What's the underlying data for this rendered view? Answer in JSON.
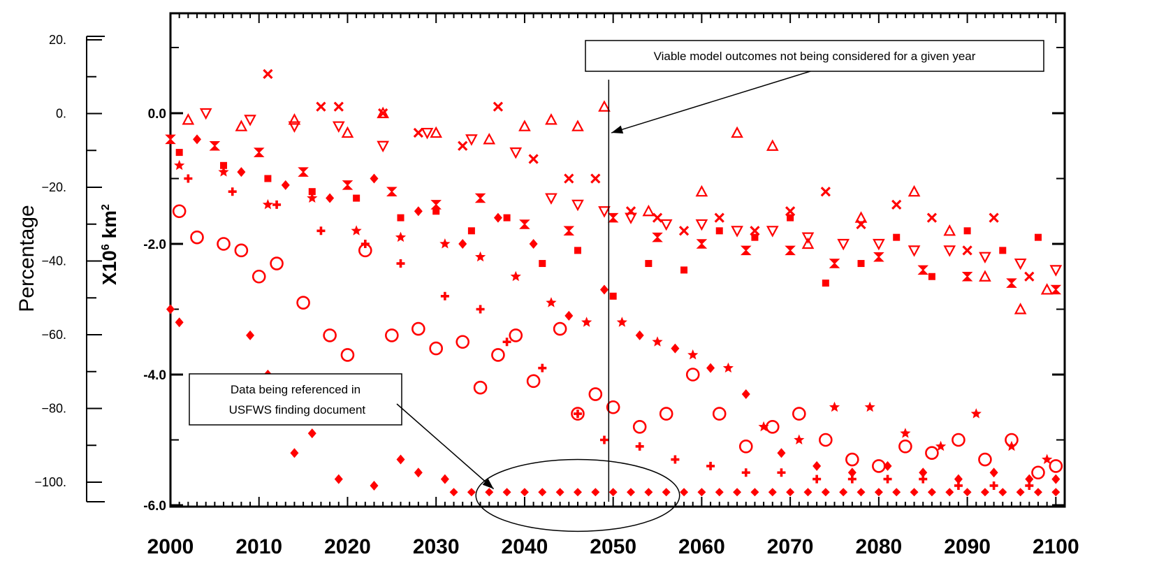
{
  "chart_data": {
    "type": "scatter",
    "x_range": [
      2000,
      2101
    ],
    "y_range_km": [
      -6.0,
      0.0
    ],
    "y_axis_right": {
      "title_prefix": "X10",
      "title_sup1": "6",
      "title_unit": " km",
      "title_sup2": "2",
      "ticks": [
        {
          "value": 0.0,
          "label": "0.0"
        },
        {
          "value": -2.0,
          "label": "-2.0"
        },
        {
          "value": -4.0,
          "label": "-4.0"
        },
        {
          "value": -6.0,
          "label": "-6.0"
        }
      ]
    },
    "y_axis_left": {
      "title": "Percentage",
      "ticks": [
        {
          "value": 20,
          "label": "20."
        },
        {
          "value": 0,
          "label": "0."
        },
        {
          "value": -20,
          "label": "−20."
        },
        {
          "value": -40,
          "label": "−40."
        },
        {
          "value": -60,
          "label": "−60."
        },
        {
          "value": -80,
          "label": "−80."
        },
        {
          "value": -100,
          "label": "−100."
        }
      ]
    },
    "x_ticks": [
      {
        "value": 2000,
        "label": "2000"
      },
      {
        "value": 2010,
        "label": "2010"
      },
      {
        "value": 2020,
        "label": "2020"
      },
      {
        "value": 2030,
        "label": "2030"
      },
      {
        "value": 2040,
        "label": "2040"
      },
      {
        "value": 2050,
        "label": "2050"
      },
      {
        "value": 2060,
        "label": "2060"
      },
      {
        "value": 2070,
        "label": "2070"
      },
      {
        "value": 2080,
        "label": "2080"
      },
      {
        "value": 2090,
        "label": "2090"
      },
      {
        "value": 2100,
        "label": "2100"
      }
    ],
    "marker_color": "#ff0000",
    "series": [
      {
        "marker": "hourglass",
        "x": [
          2000,
          2005,
          2010,
          2015,
          2020,
          2025,
          2030,
          2035,
          2040,
          2045,
          2050,
          2055,
          2060,
          2065,
          2070,
          2075,
          2080,
          2085,
          2090,
          2095,
          2100
        ],
        "y": [
          -0.4,
          -0.5,
          -0.6,
          -0.9,
          -1.1,
          -1.2,
          -1.4,
          -1.3,
          -1.7,
          -1.8,
          -1.6,
          -1.9,
          -2.0,
          -2.1,
          -2.1,
          -2.3,
          -2.2,
          -2.4,
          -2.5,
          -2.6,
          -2.7
        ]
      },
      {
        "marker": "triangle-up",
        "x": [
          2002,
          2008,
          2014,
          2020,
          2024,
          2030,
          2036,
          2040,
          2043,
          2046,
          2049,
          2054,
          2060,
          2064,
          2068,
          2072,
          2078,
          2084,
          2088,
          2092,
          2096,
          2099
        ],
        "y": [
          -0.1,
          -0.2,
          -0.1,
          -0.3,
          0.0,
          -0.3,
          -0.4,
          -0.2,
          -0.1,
          -0.2,
          0.1,
          -1.5,
          -1.2,
          -0.3,
          -0.5,
          -2.0,
          -1.6,
          -1.2,
          -1.8,
          -2.5,
          -3.0,
          -2.7
        ]
      },
      {
        "marker": "triangle-down",
        "x": [
          2004,
          2009,
          2014,
          2019,
          2024,
          2029,
          2034,
          2039,
          2043,
          2046,
          2049,
          2052,
          2056,
          2060,
          2064,
          2068,
          2072,
          2076,
          2080,
          2084,
          2088,
          2092,
          2096,
          2100
        ],
        "y": [
          0.0,
          -0.1,
          -0.2,
          -0.2,
          -0.5,
          -0.3,
          -0.4,
          -0.6,
          -1.3,
          -1.4,
          -1.5,
          -1.6,
          -1.7,
          -1.7,
          -1.8,
          -1.8,
          -1.9,
          -2.0,
          -2.0,
          -2.1,
          -2.1,
          -2.2,
          -2.3,
          -2.4
        ]
      },
      {
        "marker": "x",
        "x": [
          2011,
          2017,
          2019,
          2024,
          2028,
          2033,
          2037,
          2041,
          2045,
          2048,
          2052,
          2055,
          2058,
          2062,
          2066,
          2070,
          2074,
          2078,
          2082,
          2086,
          2090,
          2093,
          2097
        ],
        "y": [
          0.6,
          0.1,
          0.1,
          0.0,
          -0.3,
          -0.5,
          0.1,
          -0.7,
          -1.0,
          -1.0,
          -1.5,
          -1.6,
          -1.8,
          -1.6,
          -1.8,
          -1.5,
          -1.2,
          -1.7,
          -1.4,
          -1.6,
          -2.1,
          -1.6,
          -2.5
        ]
      },
      {
        "marker": "plus",
        "x": [
          2002,
          2007,
          2012,
          2017,
          2022,
          2026,
          2031,
          2035,
          2038,
          2042,
          2046,
          2049,
          2053,
          2057,
          2061,
          2065,
          2069,
          2073,
          2077,
          2081,
          2085,
          2089,
          2093,
          2097
        ],
        "y": [
          -1.0,
          -1.2,
          -1.4,
          -1.8,
          -2.0,
          -2.3,
          -2.8,
          -3.0,
          -3.5,
          -3.9,
          -4.6,
          -5.0,
          -5.1,
          -5.3,
          -5.4,
          -5.5,
          -5.5,
          -5.6,
          -5.6,
          -5.6,
          -5.6,
          -5.7,
          -5.7,
          -5.7
        ]
      },
      {
        "marker": "square",
        "x": [
          2001,
          2006,
          2011,
          2016,
          2021,
          2026,
          2030,
          2034,
          2038,
          2042,
          2046,
          2050,
          2054,
          2058,
          2062,
          2066,
          2070,
          2074,
          2078,
          2082,
          2086,
          2090,
          2094,
          2098
        ],
        "y": [
          -0.6,
          -0.8,
          -1.0,
          -1.2,
          -1.3,
          -1.6,
          -1.5,
          -1.8,
          -1.6,
          -2.3,
          -2.1,
          -2.8,
          -2.3,
          -2.4,
          -1.8,
          -1.9,
          -1.6,
          -2.6,
          -2.3,
          -1.9,
          -2.5,
          -1.8,
          -2.1,
          -1.9
        ]
      },
      {
        "marker": "diamond",
        "x": [
          2003,
          2008,
          2013,
          2018,
          2023,
          2028,
          2033,
          2037,
          2041,
          2045,
          2049,
          2053,
          2057,
          2061,
          2065,
          2069,
          2073,
          2077,
          2081,
          2085,
          2089,
          2093,
          2097,
          2100
        ],
        "y": [
          -0.4,
          -0.9,
          -1.1,
          -1.3,
          -1.0,
          -1.5,
          -2.0,
          -1.6,
          -2.0,
          -3.1,
          -2.7,
          -3.4,
          -3.6,
          -3.9,
          -4.3,
          -5.2,
          -5.4,
          -5.5,
          -5.4,
          -5.5,
          -5.6,
          -5.5,
          -5.6,
          -5.6
        ]
      },
      {
        "marker": "star",
        "x": [
          2001,
          2006,
          2011,
          2016,
          2021,
          2026,
          2031,
          2035,
          2039,
          2043,
          2047,
          2051,
          2055,
          2059,
          2063,
          2067,
          2071,
          2075,
          2079,
          2083,
          2087,
          2091,
          2095,
          2099
        ],
        "y": [
          -0.8,
          -0.9,
          -1.4,
          -1.3,
          -1.8,
          -1.9,
          -2.0,
          -2.2,
          -2.5,
          -2.9,
          -3.2,
          -3.2,
          -3.5,
          -3.7,
          -3.9,
          -4.8,
          -5.0,
          -4.5,
          -4.5,
          -4.9,
          -5.1,
          -4.6,
          -5.1,
          -5.3
        ]
      },
      {
        "marker": "circle",
        "x": [
          2001,
          2003,
          2006,
          2008,
          2010,
          2012,
          2015,
          2018,
          2020,
          2022,
          2025,
          2028,
          2030,
          2033,
          2035,
          2037,
          2039,
          2041,
          2044,
          2046,
          2048,
          2050,
          2053,
          2056,
          2059,
          2062,
          2065,
          2068,
          2071,
          2074,
          2077,
          2080,
          2083,
          2086,
          2089,
          2092,
          2095,
          2098,
          2100
        ],
        "y": [
          -1.5,
          -1.9,
          -2.0,
          -2.1,
          -2.5,
          -2.3,
          -2.9,
          -3.4,
          -3.7,
          -2.1,
          -3.4,
          -3.3,
          -3.6,
          -3.5,
          -4.2,
          -3.7,
          -3.4,
          -4.1,
          -3.3,
          -4.6,
          -4.3,
          -4.5,
          -4.8,
          -4.6,
          -4.0,
          -4.6,
          -5.1,
          -4.8,
          -4.6,
          -5.0,
          -5.3,
          -5.4,
          -5.1,
          -5.2,
          -5.0,
          -5.3,
          -5.0,
          -5.5,
          -5.4
        ]
      },
      {
        "marker": "floor-diamond",
        "x": [
          2032,
          2034,
          2036,
          2038,
          2040,
          2042,
          2044,
          2046,
          2048,
          2050,
          2052,
          2054,
          2056,
          2058,
          2060,
          2062,
          2064,
          2066,
          2068,
          2070,
          2072,
          2074,
          2076,
          2078,
          2080,
          2082,
          2084,
          2086,
          2088,
          2090,
          2092,
          2094,
          2096,
          2098,
          2100
        ],
        "y": [
          -5.8,
          -5.8,
          -5.8,
          -5.8,
          -5.8,
          -5.8,
          -5.8,
          -5.8,
          -5.8,
          -5.8,
          -5.8,
          -5.8,
          -5.8,
          -5.8,
          -5.8,
          -5.8,
          -5.8,
          -5.8,
          -5.8,
          -5.8,
          -5.8,
          -5.8,
          -5.8,
          -5.8,
          -5.8,
          -5.8,
          -5.8,
          -5.8,
          -5.8,
          -5.8,
          -5.8,
          -5.8,
          -5.8,
          -5.8,
          -5.8
        ]
      },
      {
        "marker": "diamond",
        "x": [
          2000,
          2001,
          2005,
          2009,
          2011,
          2014,
          2016,
          2019,
          2023,
          2026,
          2028,
          2031
        ],
        "y": [
          -3.0,
          -3.2,
          -4.4,
          -3.4,
          -4.0,
          -5.2,
          -4.9,
          -5.6,
          -5.7,
          -5.3,
          -5.5,
          -5.6
        ]
      }
    ],
    "annotations": {
      "vertical_line_x": 2049.5,
      "top_box": {
        "text": "Viable model outcomes not being considered for a given year",
        "arrow_to": {
          "x": 2049.8,
          "y": -0.3
        }
      },
      "bottom_box": {
        "line1": "Data being referenced in",
        "line2": " USFWS finding document",
        "arrow_to": {
          "x": 2036.5,
          "y": -5.75
        }
      },
      "ellipse": {
        "cx": 2046,
        "cy": -5.85,
        "rx_years": 11.5,
        "ry_km": 0.55
      }
    }
  }
}
